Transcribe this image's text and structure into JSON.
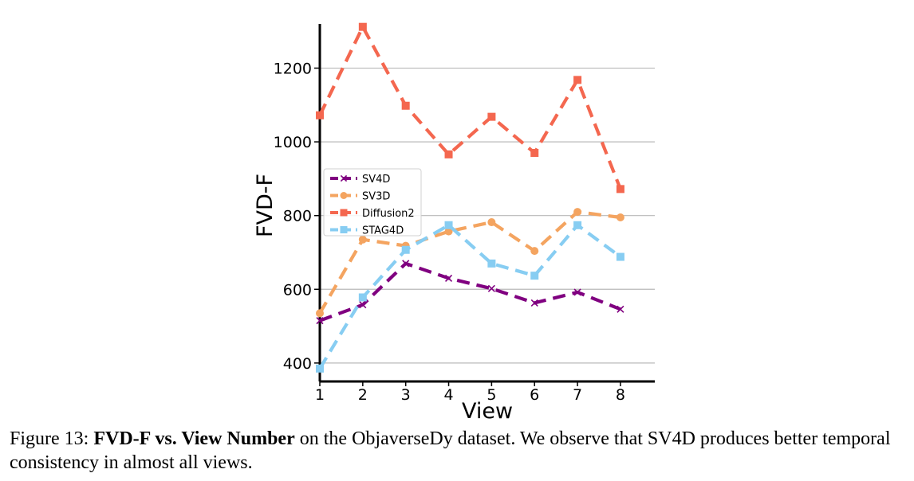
{
  "chart_data": {
    "type": "line",
    "xlabel": "View",
    "ylabel": "FVD-F",
    "x": [
      1,
      2,
      3,
      4,
      5,
      6,
      7,
      8
    ],
    "xlim": [
      1,
      8.8
    ],
    "ylim": [
      350,
      1320
    ],
    "yticks": [
      400,
      600,
      800,
      1000,
      1200
    ],
    "grid": "horizontal",
    "legend_position": "center-left",
    "series": [
      {
        "name": "SV4D",
        "color": "#800080",
        "marker": "x",
        "values": [
          515,
          558,
          670,
          630,
          602,
          563,
          592,
          546
        ]
      },
      {
        "name": "SV3D",
        "color": "#f4a460",
        "marker": "circle",
        "values": [
          535,
          735,
          718,
          757,
          782,
          704,
          810,
          795
        ]
      },
      {
        "name": "Diffusion2",
        "color": "#f4674f",
        "marker": "square",
        "values": [
          1072,
          1312,
          1098,
          966,
          1068,
          970,
          1168,
          872
        ]
      },
      {
        "name": "STAG4D",
        "color": "#87cdf2",
        "marker": "square",
        "values": [
          385,
          578,
          707,
          774,
          670,
          637,
          774,
          688
        ]
      }
    ]
  },
  "caption": {
    "prefix": "Figure 13: ",
    "bold": "FVD-F vs. View Number",
    "rest": " on the ObjaverseDy dataset. We observe that SV4D produces better temporal consistency in almost all views."
  }
}
